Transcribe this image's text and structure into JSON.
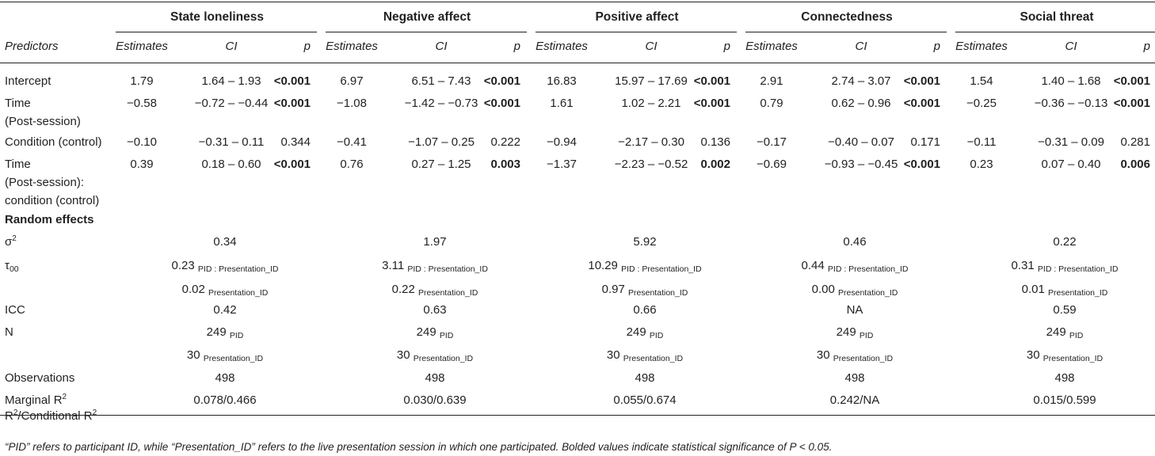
{
  "groups": [
    "State loneliness",
    "Negative affect",
    "Positive affect",
    "Connectedness",
    "Social threat"
  ],
  "subheaders": {
    "predictors": "Predictors",
    "estimates": "Estimates",
    "ci": "CI",
    "p": "p"
  },
  "fixed_rows": [
    {
      "label": [
        "Intercept"
      ],
      "cells": [
        {
          "est": "1.79",
          "ci": "1.64 – 1.93",
          "p": "<0.001",
          "sig": true
        },
        {
          "est": "6.97",
          "ci": "6.51 – 7.43",
          "p": "<0.001",
          "sig": true
        },
        {
          "est": "16.83",
          "ci": "15.97 – 17.69",
          "p": "<0.001",
          "sig": true
        },
        {
          "est": "2.91",
          "ci": "2.74 – 3.07",
          "p": "<0.001",
          "sig": true
        },
        {
          "est": "1.54",
          "ci": "1.40 – 1.68",
          "p": "<0.001",
          "sig": true
        }
      ]
    },
    {
      "label": [
        "Time",
        "(Post-session)"
      ],
      "cells": [
        {
          "est": "−0.58",
          "ci": "−0.72 – −0.44",
          "p": "<0.001",
          "sig": true
        },
        {
          "est": "−1.08",
          "ci": "−1.42 – −0.73",
          "p": "<0.001",
          "sig": true
        },
        {
          "est": "1.61",
          "ci": "1.02 – 2.21",
          "p": "<0.001",
          "sig": true
        },
        {
          "est": "0.79",
          "ci": "0.62 – 0.96",
          "p": "<0.001",
          "sig": true
        },
        {
          "est": "−0.25",
          "ci": "−0.36 – −0.13",
          "p": "<0.001",
          "sig": true
        }
      ]
    },
    {
      "label": [
        "Condition (control)"
      ],
      "cells": [
        {
          "est": "−0.10",
          "ci": "−0.31 – 0.11",
          "p": "0.344",
          "sig": false
        },
        {
          "est": "−0.41",
          "ci": "−1.07 – 0.25",
          "p": "0.222",
          "sig": false
        },
        {
          "est": "−0.94",
          "ci": "−2.17 – 0.30",
          "p": "0.136",
          "sig": false
        },
        {
          "est": "−0.17",
          "ci": "−0.40 – 0.07",
          "p": "0.171",
          "sig": false
        },
        {
          "est": "−0.11",
          "ci": "−0.31 – 0.09",
          "p": "0.281",
          "sig": false
        }
      ]
    },
    {
      "label": [
        "Time",
        "(Post-session):",
        "condition (control)"
      ],
      "cells": [
        {
          "est": "0.39",
          "ci": "0.18 – 0.60",
          "p": "<0.001",
          "sig": true
        },
        {
          "est": "0.76",
          "ci": "0.27 – 1.25",
          "p": "0.003",
          "sig": true
        },
        {
          "est": "−1.37",
          "ci": "−2.23 – −0.52",
          "p": "0.002",
          "sig": true
        },
        {
          "est": "−0.69",
          "ci": "−0.93 – −0.45",
          "p": "<0.001",
          "sig": true
        },
        {
          "est": "0.23",
          "ci": "0.07 – 0.40",
          "p": "0.006",
          "sig": true
        }
      ]
    }
  ],
  "random_effects_label": "Random effects",
  "random_rows": [
    {
      "label": "σ",
      "label_sup": "2",
      "values": [
        {
          "v": "0.34",
          "s": ""
        },
        {
          "v": "1.97",
          "s": ""
        },
        {
          "v": "5.92",
          "s": ""
        },
        {
          "v": "0.46",
          "s": ""
        },
        {
          "v": "0.22",
          "s": ""
        }
      ]
    },
    {
      "label": "τ",
      "label_sub": "00",
      "values": [
        {
          "v": "0.23",
          "s": "PID : Presentation_ID"
        },
        {
          "v": "3.11",
          "s": "PID : Presentation_ID"
        },
        {
          "v": "10.29",
          "s": "PID : Presentation_ID"
        },
        {
          "v": "0.44",
          "s": "PID : Presentation_ID"
        },
        {
          "v": "0.31",
          "s": "PID : Presentation_ID"
        }
      ]
    },
    {
      "label": "",
      "values": [
        {
          "v": "0.02",
          "s": "Presentation_ID"
        },
        {
          "v": "0.22",
          "s": "Presentation_ID"
        },
        {
          "v": "0.97",
          "s": "Presentation_ID"
        },
        {
          "v": "0.00",
          "s": "Presentation_ID"
        },
        {
          "v": "0.01",
          "s": "Presentation_ID"
        }
      ]
    },
    {
      "label": "ICC",
      "values": [
        {
          "v": "0.42",
          "s": ""
        },
        {
          "v": "0.63",
          "s": ""
        },
        {
          "v": "0.66",
          "s": ""
        },
        {
          "v": "NA",
          "s": ""
        },
        {
          "v": "0.59",
          "s": ""
        }
      ]
    },
    {
      "label": "N",
      "values": [
        {
          "v": "249",
          "s": "PID"
        },
        {
          "v": "249",
          "s": "PID"
        },
        {
          "v": "249",
          "s": "PID"
        },
        {
          "v": "249",
          "s": "PID"
        },
        {
          "v": "249",
          "s": "PID"
        }
      ]
    },
    {
      "label": "",
      "values": [
        {
          "v": "30",
          "s": "Presentation_ID"
        },
        {
          "v": "30",
          "s": "Presentation_ID"
        },
        {
          "v": "30",
          "s": "Presentation_ID"
        },
        {
          "v": "30",
          "s": "Presentation_ID"
        },
        {
          "v": "30",
          "s": "Presentation_ID"
        }
      ]
    },
    {
      "label": "Observations",
      "values": [
        {
          "v": "498",
          "s": ""
        },
        {
          "v": "498",
          "s": ""
        },
        {
          "v": "498",
          "s": ""
        },
        {
          "v": "498",
          "s": ""
        },
        {
          "v": "498",
          "s": ""
        }
      ]
    },
    {
      "label": "Marginal R",
      "label_sup": "2",
      "label2": "R",
      "label2_sup": "2",
      "label2_rest": "/Conditional R",
      "label2_sup2": "2",
      "values": [
        {
          "v": "0.078/0.466",
          "s": ""
        },
        {
          "v": "0.030/0.639",
          "s": ""
        },
        {
          "v": "0.055/0.674",
          "s": ""
        },
        {
          "v": "0.242/NA",
          "s": ""
        },
        {
          "v": "0.015/0.599",
          "s": ""
        }
      ]
    }
  ],
  "footnote": "“PID” refers to participant ID, while “Presentation_ID” refers to the live presentation session in which one participated. Bolded values indicate statistical significance of P < 0.05."
}
